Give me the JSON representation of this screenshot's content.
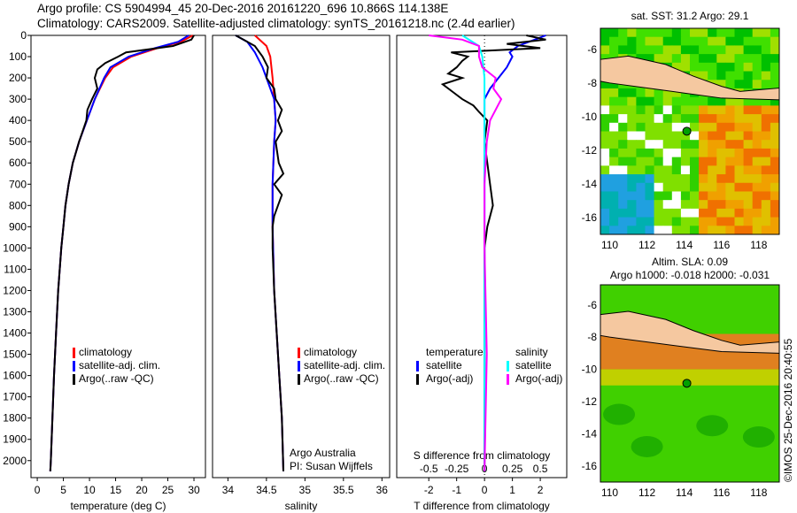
{
  "title_line1": "Argo profile: CS 5904994_45 20-Dec-2016 20161220_696 10.866S 114.138E",
  "title_line2": "Climatology: CARS2009. Satellite-adjusted climatology: synTS_20161218.nc (2.4d earlier)",
  "side_label": "©IMOS 25-Dec-2016 20:40:55",
  "colors": {
    "climatology": "#ff0000",
    "satellite": "#0000ff",
    "argo": "#000000",
    "sal_sat": "#00ffff",
    "sal_argo": "#ff00ff"
  },
  "chart_data": [
    {
      "type": "line",
      "id": "temperature",
      "xlabel": "temperature (deg C)",
      "ylabel": "depth",
      "xlim": [
        -1.2,
        32.2
      ],
      "ylim": [
        2080,
        0
      ],
      "xticks": [
        "0",
        "5",
        "10",
        "15",
        "20",
        "25",
        "30"
      ],
      "xtick_values": [
        0,
        5,
        10,
        15,
        20,
        25,
        30
      ],
      "yticks": [
        "0",
        "100",
        "200",
        "300",
        "400",
        "500",
        "600",
        "700",
        "800",
        "900",
        "1000",
        "1100",
        "1200",
        "1300",
        "1400",
        "1500",
        "1600",
        "1700",
        "1800",
        "1900",
        "2000"
      ],
      "legend": [
        "climatology",
        "satellite-adj. clim.",
        "Argo(..raw -QC)"
      ],
      "series": [
        {
          "name": "climatology",
          "color": "#ff0000",
          "depth": [
            0,
            30,
            60,
            100,
            150,
            200,
            300,
            400,
            500,
            600,
            700,
            800,
            900,
            1000,
            1200,
            1400,
            1600,
            1800,
            2000,
            2050
          ],
          "values": [
            29.8,
            27.5,
            23,
            18,
            14.5,
            13,
            11,
            9.5,
            8,
            6.8,
            6,
            5.4,
            5,
            4.6,
            4,
            3.6,
            3.2,
            2.9,
            2.6,
            2.5
          ]
        },
        {
          "name": "satellite-adj. clim.",
          "color": "#0000ff",
          "depth": [
            0,
            30,
            60,
            100,
            150,
            200,
            300,
            400,
            500,
            600,
            700,
            800,
            900,
            1000,
            1200,
            1400,
            1600,
            1800,
            2000,
            2050
          ],
          "values": [
            29,
            27,
            22.5,
            17.5,
            14,
            12.8,
            11,
            9.5,
            8,
            6.8,
            6,
            5.4,
            5,
            4.6,
            4,
            3.6,
            3.2,
            2.9,
            2.6,
            2.5
          ]
        },
        {
          "name": "Argo(..raw -QC)",
          "color": "#000000",
          "depth": [
            0,
            20,
            50,
            80,
            100,
            130,
            160,
            200,
            250,
            300,
            350,
            400,
            500,
            600,
            700,
            800,
            900,
            1000,
            1200,
            1400,
            1600,
            1800,
            2000,
            2050
          ],
          "values": [
            30,
            29.5,
            26,
            17,
            15.5,
            13,
            11.5,
            11,
            11.5,
            10.5,
            9.6,
            9.4,
            8,
            6.8,
            6,
            5.4,
            5,
            4.6,
            4,
            3.6,
            3.2,
            2.9,
            2.6,
            2.5
          ]
        }
      ]
    },
    {
      "type": "line",
      "id": "salinity",
      "xlabel": "salinity",
      "xlim": [
        33.8,
        36.1
      ],
      "ylim": [
        2080,
        0
      ],
      "xticks": [
        "34",
        "34.5",
        "35",
        "35.5",
        "36"
      ],
      "xtick_values": [
        34,
        34.5,
        35,
        35.5,
        36
      ],
      "legend": [
        "climatology",
        "satellite-adj. clim.",
        "Argo(..raw -QC)"
      ],
      "annotation": [
        "Argo Australia",
        "PI: Susan Wijffels"
      ],
      "series": [
        {
          "name": "climatology",
          "color": "#ff0000",
          "depth": [
            0,
            50,
            100,
            200,
            300,
            400,
            500,
            700,
            900,
            1200,
            1500,
            1800,
            2050
          ],
          "values": [
            34.35,
            34.5,
            34.55,
            34.58,
            34.6,
            34.62,
            34.6,
            34.58,
            34.58,
            34.6,
            34.65,
            34.7,
            34.72
          ]
        },
        {
          "name": "satellite-adj. clim.",
          "color": "#0000ff",
          "depth": [
            0,
            30,
            80,
            150,
            200,
            300,
            400,
            500,
            700,
            900,
            1200,
            1500,
            1800,
            2050
          ],
          "values": [
            34.1,
            34.25,
            34.35,
            34.45,
            34.5,
            34.6,
            34.62,
            34.6,
            34.58,
            34.58,
            34.6,
            34.65,
            34.7,
            34.72
          ]
        },
        {
          "name": "Argo(..raw -QC)",
          "color": "#000000",
          "depth": [
            0,
            20,
            50,
            100,
            150,
            200,
            250,
            300,
            350,
            400,
            450,
            500,
            600,
            650,
            700,
            750,
            800,
            850,
            900,
            1000,
            1200,
            1500,
            1800,
            2050
          ],
          "values": [
            34.1,
            34.2,
            34.35,
            34.45,
            34.52,
            34.5,
            34.6,
            34.62,
            34.7,
            34.65,
            34.7,
            34.62,
            34.66,
            34.72,
            34.6,
            34.7,
            34.65,
            34.6,
            34.58,
            34.58,
            34.6,
            34.65,
            34.7,
            34.72
          ]
        }
      ]
    },
    {
      "type": "line",
      "id": "difference",
      "xlabel": "T difference from climatology",
      "x2label": "S difference from climatology",
      "xlim": [
        -3.15,
        2.95
      ],
      "ylim": [
        2080,
        0
      ],
      "xticks": [
        "-2",
        "-1",
        "0",
        "1",
        "2"
      ],
      "xtick_values": [
        -2,
        -1,
        0,
        1,
        2
      ],
      "x2ticks": [
        "-0.5",
        "-0.25",
        "0",
        "0.25",
        "0.5"
      ],
      "legend_t": [
        "temperature",
        "satellite",
        "Argo(-adj)"
      ],
      "legend_s": [
        "salinity",
        "satellite",
        "Argo(-adj)"
      ],
      "series": [
        {
          "name": "T satellite",
          "color": "#0000ff",
          "depth": [
            0,
            20,
            50,
            80,
            100,
            150,
            200,
            250,
            300,
            400,
            600,
            1000,
            1500,
            2050
          ],
          "values": [
            2.2,
            1.8,
            1.2,
            0.9,
            1,
            0.8,
            0.5,
            0.2,
            0,
            0,
            0,
            0,
            0,
            0
          ]
        },
        {
          "name": "T Argo(-adj)",
          "color": "#000000",
          "depth": [
            0,
            20,
            40,
            60,
            80,
            100,
            120,
            150,
            180,
            200,
            230,
            260,
            300,
            330,
            360,
            400,
            500,
            600,
            700,
            800,
            900,
            1000,
            1500,
            2050
          ],
          "values": [
            1.5,
            2.2,
            0.8,
            2,
            -1.2,
            -0.6,
            -0.8,
            -1,
            -1.3,
            -0.8,
            -1.5,
            -1.2,
            -0.8,
            -0.4,
            -0.2,
            0.1,
            0,
            0.1,
            0.2,
            0.3,
            0.1,
            0,
            0,
            0
          ]
        },
        {
          "name": "S satellite",
          "color": "#00ffff",
          "depth": [
            0,
            50,
            100,
            200,
            300,
            500,
            800,
            1200,
            2050
          ],
          "values": [
            -0.2,
            -0.05,
            -0.02,
            0,
            0,
            0,
            0,
            0,
            0
          ]
        },
        {
          "name": "S Argo(-adj)",
          "color": "#ff00ff",
          "depth": [
            0,
            20,
            50,
            100,
            150,
            200,
            250,
            300,
            350,
            400,
            500,
            700,
            1000,
            1500,
            2050
          ],
          "values": [
            -0.5,
            -0.2,
            -0.05,
            -0.05,
            -0.02,
            0.1,
            0.08,
            0.15,
            0.1,
            0.05,
            0.02,
            0,
            0,
            0.02,
            0
          ]
        }
      ]
    },
    {
      "type": "heatmap",
      "id": "sst-map",
      "title": "sat. SST: 31.2 Argo: 29.1",
      "xticks": [
        "110",
        "112",
        "114",
        "116",
        "118"
      ],
      "yticks": [
        "-6",
        "-8",
        "-10",
        "-12",
        "-14",
        "-16"
      ],
      "marker": [
        114.138,
        -10.866
      ]
    },
    {
      "type": "heatmap",
      "id": "sla-map",
      "title": "Altim. SLA: 0.09",
      "subtitle": "Argo h1000: -0.018 h2000: -0.031",
      "xticks": [
        "110",
        "112",
        "114",
        "116",
        "118"
      ],
      "yticks": [
        "-6",
        "-8",
        "-10",
        "-12",
        "-14",
        "-16"
      ],
      "marker": [
        114.138,
        -10.866
      ]
    }
  ]
}
